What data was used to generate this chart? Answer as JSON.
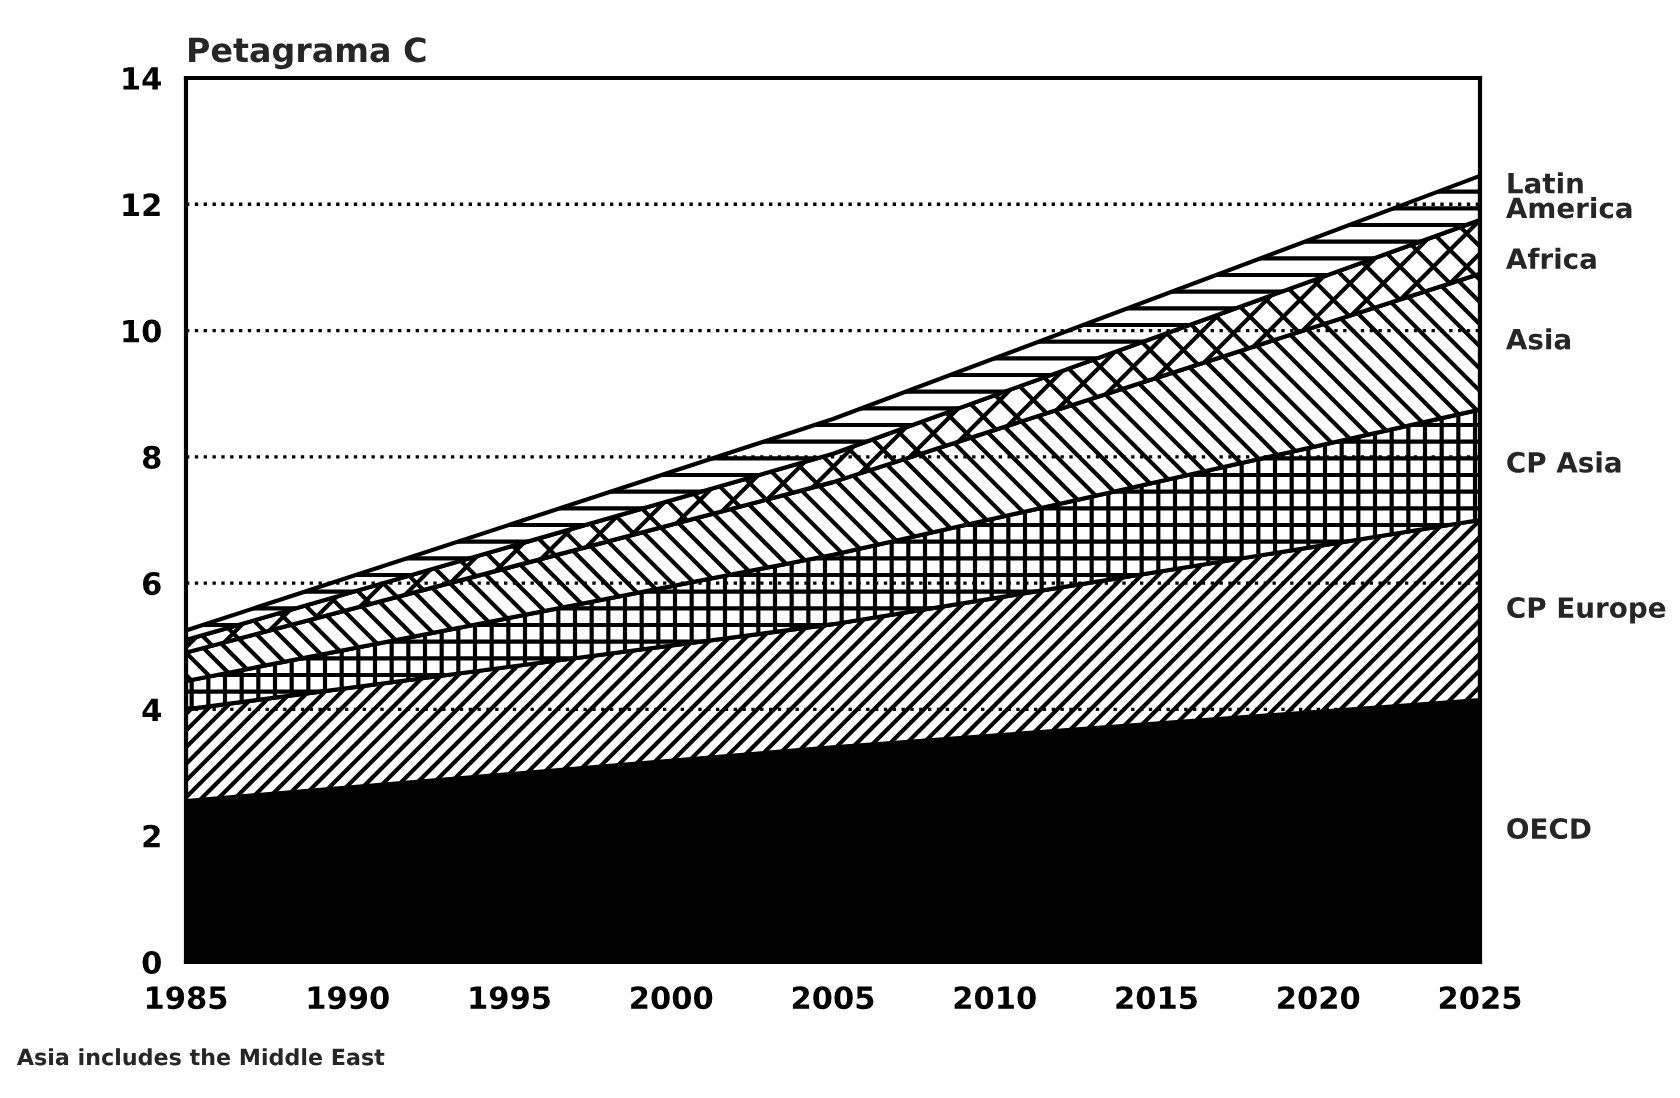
{
  "chart_data": {
    "type": "area",
    "stacked": true,
    "ylabel": "Petagrama C",
    "x": [
      "1985",
      "2005",
      "2025"
    ],
    "series": [
      {
        "name": "OECD",
        "color": "#000000",
        "values": [
          2.55,
          3.4,
          4.15
        ]
      },
      {
        "name": "CP Europe",
        "color": "#000000",
        "values": [
          1.45,
          1.95,
          2.85
        ]
      },
      {
        "name": "CP Asia",
        "color": "#000000",
        "values": [
          0.45,
          1.1,
          1.75
        ]
      },
      {
        "name": "Asia",
        "color": "#000000",
        "values": [
          0.45,
          1.15,
          2.15
        ]
      },
      {
        "name": "Africa",
        "color": "#000000",
        "values": [
          0.2,
          0.45,
          0.85
        ]
      },
      {
        "name": "Latin\nAmerica",
        "color": "#000000",
        "values": [
          0.15,
          0.55,
          0.7
        ]
      }
    ],
    "xlim": [
      "1985",
      "2025"
    ],
    "xticks": [
      "1985",
      "1990",
      "1995",
      "2000",
      "2005",
      "2010",
      "2015",
      "2020",
      "2025"
    ],
    "ylim": [
      0,
      14
    ],
    "yticks": [
      0,
      2,
      4,
      6,
      8,
      10,
      12,
      14
    ],
    "grid": "y",
    "legend": false,
    "annotations": [
      "Asia includes the Middle East"
    ]
  }
}
